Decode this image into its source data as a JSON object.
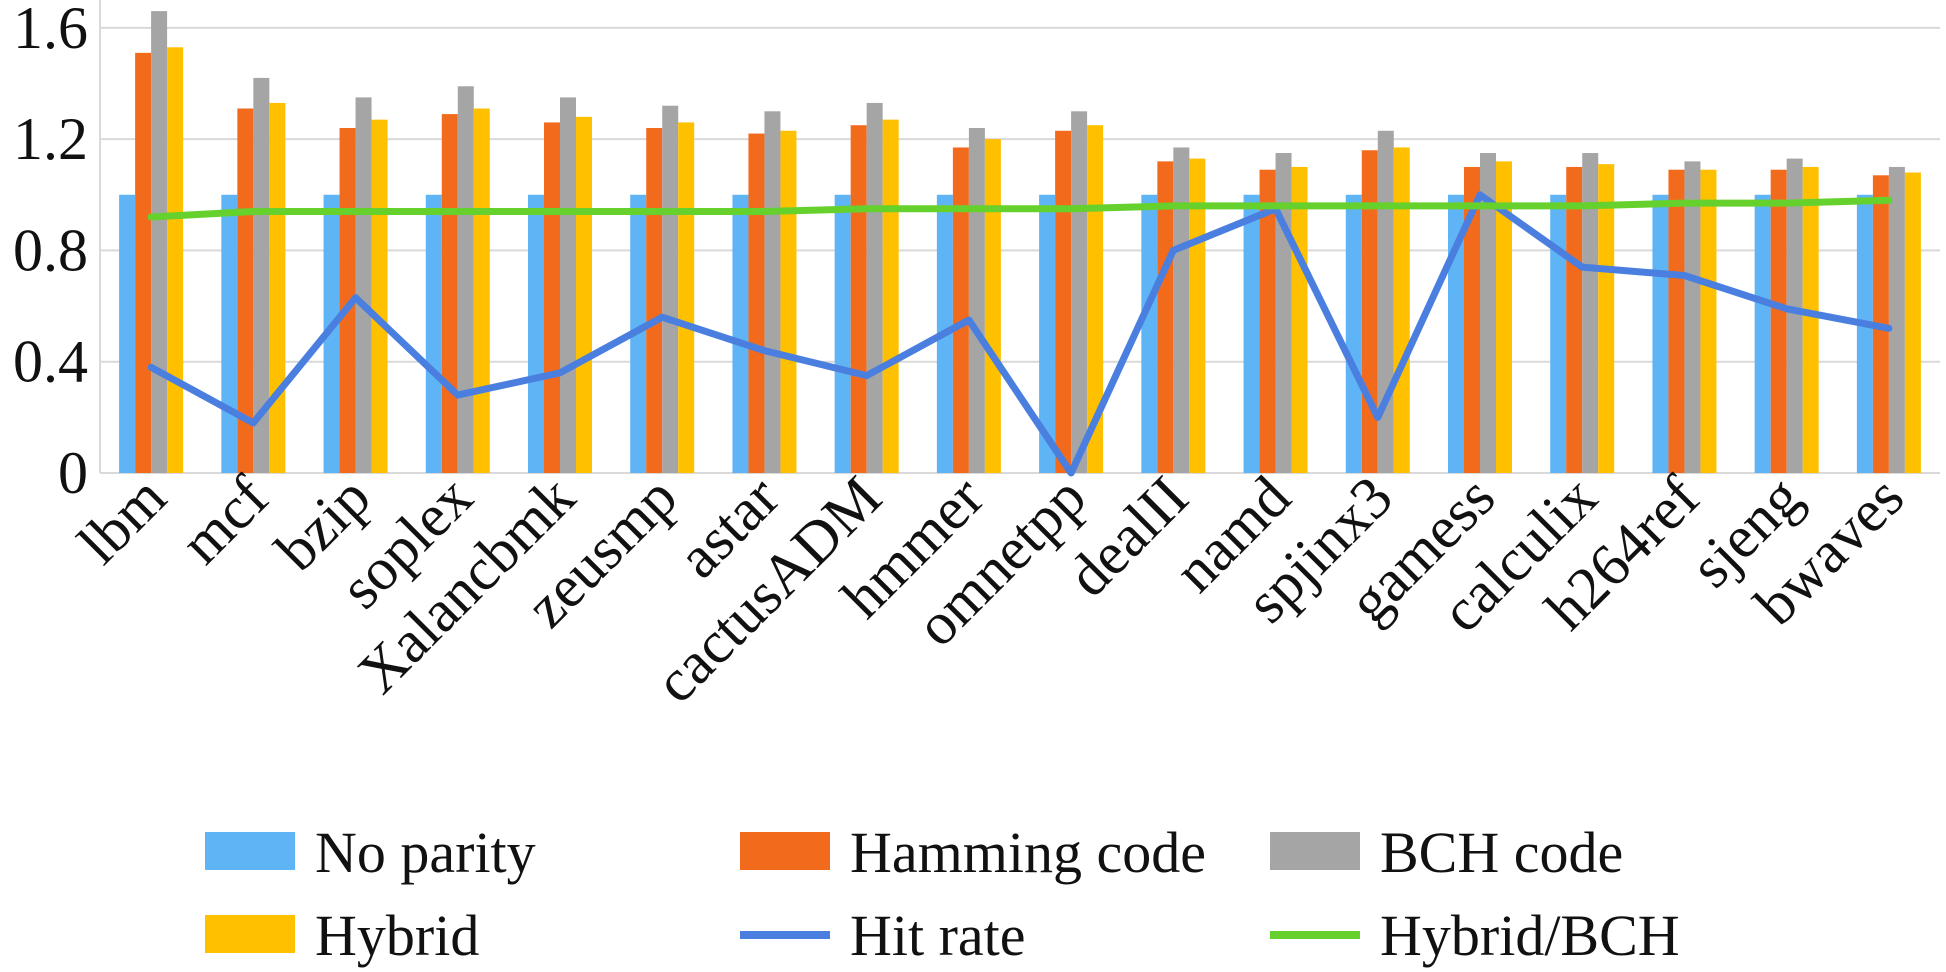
{
  "chart_data": {
    "type": "bar",
    "title": "",
    "xlabel": "",
    "ylabel": "",
    "ylim": [
      0,
      1.7
    ],
    "yticks": [
      "0",
      "0.4",
      "0.8",
      "1.2",
      "1.6"
    ],
    "ytick_values": [
      0,
      0.4,
      0.8,
      1.2,
      1.6
    ],
    "grid": true,
    "legend_position": "bottom",
    "categories": [
      "lbm",
      "mcf",
      "bzip",
      "soplex",
      "Xalancbmk",
      "zeusmp",
      "astar",
      "cactusADM",
      "hmmer",
      "omnetpp",
      "dealII",
      "namd",
      "spjinx3",
      "gamess",
      "calculix",
      "h264ref",
      "sjeng",
      "bwaves"
    ],
    "series": [
      {
        "name": "No parity",
        "kind": "bar",
        "color": "#5eb4f4",
        "values": [
          1.0,
          1.0,
          1.0,
          1.0,
          1.0,
          1.0,
          1.0,
          1.0,
          1.0,
          1.0,
          1.0,
          1.0,
          1.0,
          1.0,
          1.0,
          1.0,
          1.0,
          1.0
        ]
      },
      {
        "name": "Hamming code",
        "kind": "bar",
        "color": "#f26b1d",
        "values": [
          1.51,
          1.31,
          1.24,
          1.29,
          1.26,
          1.24,
          1.22,
          1.25,
          1.17,
          1.23,
          1.12,
          1.09,
          1.16,
          1.1,
          1.1,
          1.09,
          1.09,
          1.07
        ]
      },
      {
        "name": "BCH code",
        "kind": "bar",
        "color": "#a5a5a5",
        "values": [
          1.66,
          1.42,
          1.35,
          1.39,
          1.35,
          1.32,
          1.3,
          1.33,
          1.24,
          1.3,
          1.17,
          1.15,
          1.23,
          1.15,
          1.15,
          1.12,
          1.13,
          1.1
        ]
      },
      {
        "name": "Hybrid",
        "kind": "bar",
        "color": "#ffc000",
        "values": [
          1.53,
          1.33,
          1.27,
          1.31,
          1.28,
          1.26,
          1.23,
          1.27,
          1.2,
          1.25,
          1.13,
          1.1,
          1.17,
          1.12,
          1.11,
          1.09,
          1.1,
          1.08
        ]
      },
      {
        "name": "Hit rate",
        "kind": "line",
        "color": "#4a7fe0",
        "values": [
          0.38,
          0.18,
          0.63,
          0.28,
          0.36,
          0.56,
          0.44,
          0.35,
          0.55,
          0.0,
          0.8,
          0.95,
          0.2,
          1.0,
          0.74,
          0.71,
          0.59,
          0.52
        ]
      },
      {
        "name": "Hybrid/BCH",
        "kind": "line",
        "color": "#66d12c",
        "values": [
          0.92,
          0.94,
          0.94,
          0.94,
          0.94,
          0.94,
          0.94,
          0.95,
          0.95,
          0.95,
          0.96,
          0.96,
          0.96,
          0.96,
          0.96,
          0.97,
          0.97,
          0.98
        ]
      }
    ]
  }
}
